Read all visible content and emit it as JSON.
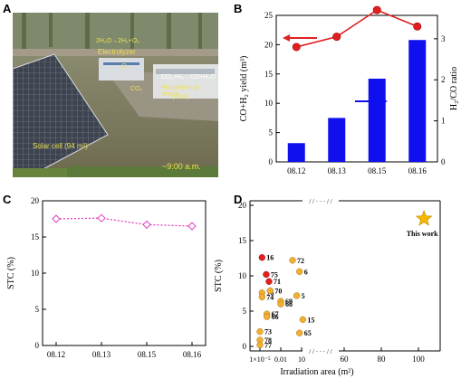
{
  "panels": {
    "a": "A",
    "b": "B",
    "c": "C",
    "d": "D"
  },
  "photo": {
    "electrolyzer_eq": "2H₂O→2H₂+O₂",
    "electrolyzer_label": "Electrolyzer",
    "o2_label": "O₂",
    "co2_label": "CO₂",
    "photothermal_eq": "CO₂+H₂→CO+H₂O",
    "photothermal_label": "Photothermal device",
    "photothermal_area": "(9 m²)",
    "solar_label": "Solar cell (94 m²)",
    "time_label": "~9:00 a.m."
  },
  "chart_data": [
    {
      "type": "bar",
      "panel": "B",
      "categories": [
        "08.12",
        "08.13",
        "08.15",
        "08.16"
      ],
      "series": [
        {
          "name": "CO+H2 yield",
          "axis": "left",
          "type": "bar",
          "color": "#1010ee",
          "values": [
            3.2,
            7.5,
            14.2,
            20.8
          ]
        },
        {
          "name": "H2/CO ratio",
          "axis": "right",
          "type": "line",
          "color": "#e02020",
          "values": [
            2.8,
            3.05,
            3.7,
            3.3
          ]
        }
      ],
      "ylabel_left": "CO+H₂ yield (m³)",
      "ylabel_right": "H₂/CO ratio",
      "ylim_left": [
        0,
        25
      ],
      "ylim_right": [
        0,
        3.57
      ],
      "yticks_left": [
        "0",
        "5",
        "10",
        "15",
        "20",
        "25"
      ],
      "yticks_right": [
        "0",
        "1",
        "2",
        "3"
      ]
    },
    {
      "type": "line",
      "panel": "C",
      "categories": [
        "08.12",
        "08.13",
        "08.15",
        "08.16"
      ],
      "series": [
        {
          "color": "#e040c0",
          "values": [
            17.5,
            17.6,
            16.7,
            16.5
          ]
        }
      ],
      "ylabel": "STC (%)",
      "ylim": [
        0,
        20
      ],
      "yticks": [
        "0",
        "5",
        "10",
        "15",
        "20"
      ]
    },
    {
      "type": "scatter",
      "panel": "D",
      "xlabel": "Irradiation area (m²)",
      "ylabel": "STC (%)",
      "ylim": [
        0,
        20
      ],
      "yticks": [
        "0",
        "5",
        "10",
        "15",
        "20"
      ],
      "xticks_log": [
        "1×10⁻⁵",
        "0.01",
        "10"
      ],
      "xticks_linear": [
        "60",
        "80",
        "100"
      ],
      "break_marks": [
        "/ / · · · / /",
        "/ / · · · / /"
      ],
      "points": [
        {
          "label": "16",
          "x": 2e-05,
          "y": 12.6,
          "color": "red"
        },
        {
          "label": "72",
          "x": 0.5,
          "y": 12.2,
          "color": "orange"
        },
        {
          "label": "6",
          "x": 5,
          "y": 10.6,
          "color": "orange"
        },
        {
          "label": "75",
          "x": 8e-05,
          "y": 10.2,
          "color": "red"
        },
        {
          "label": "71",
          "x": 0.0002,
          "y": 9.2,
          "color": "red"
        },
        {
          "label": "76",
          "x": 2e-05,
          "y": 7.6,
          "color": "orange"
        },
        {
          "label": "70",
          "x": 0.0003,
          "y": 7.9,
          "color": "orange"
        },
        {
          "label": "5",
          "x": 2,
          "y": 7.2,
          "color": "orange"
        },
        {
          "label": "74",
          "x": 2e-05,
          "y": 7.0,
          "color": "orange"
        },
        {
          "label": "69",
          "x": 0.01,
          "y": 6.4,
          "color": "orange"
        },
        {
          "label": "68",
          "x": 0.01,
          "y": 6.0,
          "color": "orange"
        },
        {
          "label": "67",
          "x": 0.0001,
          "y": 4.6,
          "color": "orange"
        },
        {
          "label": "66",
          "x": 0.0001,
          "y": 4.2,
          "color": "orange"
        },
        {
          "label": "15",
          "x": 15,
          "y": 3.8,
          "color": "orange"
        },
        {
          "label": "73",
          "x": 1e-05,
          "y": 2.1,
          "color": "orange"
        },
        {
          "label": "65",
          "x": 5,
          "y": 1.9,
          "color": "orange"
        },
        {
          "label": "78",
          "x": 1e-05,
          "y": 0.9,
          "color": "orange"
        },
        {
          "label": "77",
          "x": 1e-05,
          "y": 0.2,
          "color": "orange"
        },
        {
          "label": "This work",
          "x": 103,
          "y": 18.1,
          "color": "gold",
          "marker": "star"
        }
      ]
    }
  ]
}
